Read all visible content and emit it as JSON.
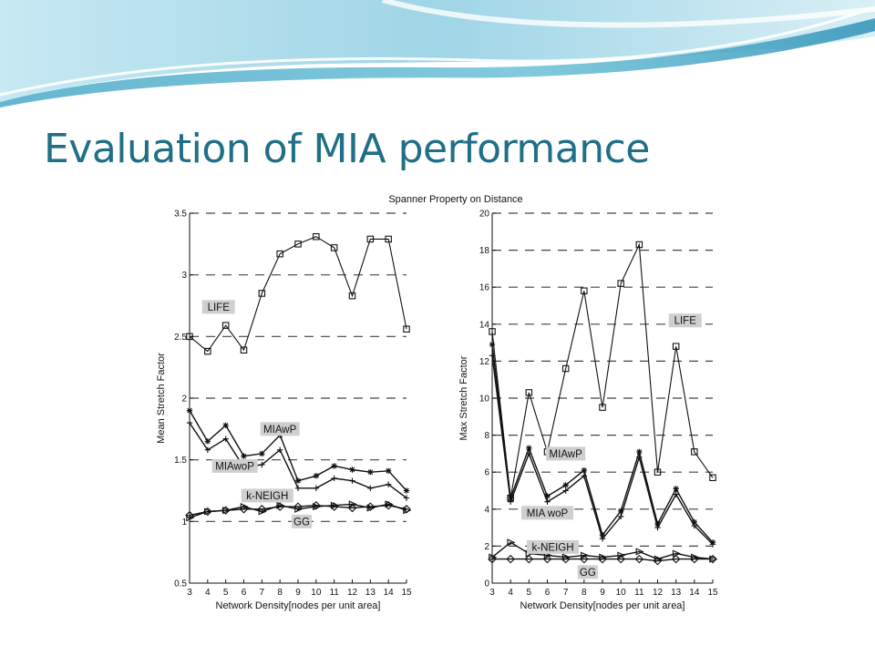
{
  "slide": {
    "title": "Evaluation of MIA performance",
    "title_color": "#1f6f86",
    "banner_colors": [
      "#a9dcea",
      "#5fb8d3",
      "#e6f4f9"
    ]
  },
  "chart_data": [
    {
      "type": "line",
      "title": "Spanner Property on Distance",
      "xlabel": "Network Density[nodes per unit area]",
      "ylabel": "Mean Stretch Factor",
      "x": [
        3,
        4,
        5,
        6,
        7,
        8,
        9,
        10,
        11,
        12,
        13,
        14,
        15
      ],
      "xlim": [
        3,
        15
      ],
      "ylim": [
        0.5,
        3.5
      ],
      "yticks": [
        0.5,
        1,
        1.5,
        2,
        2.5,
        3,
        3.5
      ],
      "ytick_labels": [
        "0.5",
        "1",
        "1.5",
        "2",
        "2.5",
        "3",
        "3.5"
      ],
      "grid": "dashed-horizontal",
      "series": [
        {
          "name": "LIFE",
          "marker": "square",
          "values": [
            2.5,
            2.38,
            2.59,
            2.39,
            2.85,
            3.17,
            3.25,
            3.31,
            3.22,
            2.83,
            3.29,
            3.29,
            2.56
          ]
        },
        {
          "name": "MIAwP",
          "marker": "star",
          "values": [
            1.9,
            1.65,
            1.78,
            1.53,
            1.55,
            1.7,
            1.33,
            1.37,
            1.45,
            1.42,
            1.4,
            1.41,
            1.25
          ]
        },
        {
          "name": "MIAwoP",
          "marker": "plus",
          "values": [
            1.8,
            1.58,
            1.67,
            1.44,
            1.46,
            1.58,
            1.27,
            1.27,
            1.35,
            1.33,
            1.27,
            1.3,
            1.19
          ]
        },
        {
          "name": "k-NEIGH",
          "marker": "triangle",
          "values": [
            1.03,
            1.08,
            1.09,
            1.12,
            1.08,
            1.13,
            1.1,
            1.12,
            1.13,
            1.14,
            1.11,
            1.14,
            1.09
          ]
        },
        {
          "name": "GG",
          "marker": "diamond",
          "values": [
            1.05,
            1.08,
            1.09,
            1.1,
            1.1,
            1.12,
            1.12,
            1.13,
            1.12,
            1.11,
            1.12,
            1.13,
            1.1
          ]
        }
      ],
      "series_labels": [
        {
          "series": "LIFE",
          "text": "LIFE",
          "at_x": 4.6,
          "at_y": 2.74
        },
        {
          "series": "MIAwP",
          "text": "MIAwP",
          "at_x": 8.0,
          "at_y": 1.75
        },
        {
          "series": "MIAwoP",
          "text": "MIAwoP",
          "at_x": 5.5,
          "at_y": 1.45
        },
        {
          "series": "k-NEIGH",
          "text": "k-NEIGH",
          "at_x": 7.3,
          "at_y": 1.21
        },
        {
          "series": "GG",
          "text": "GG",
          "at_x": 9.2,
          "at_y": 1.0
        }
      ]
    },
    {
      "type": "line",
      "xlabel": "Network Density[nodes per unit area]",
      "ylabel": "Max Stretch Factor",
      "x": [
        3,
        4,
        5,
        6,
        7,
        8,
        9,
        10,
        11,
        12,
        13,
        14,
        15
      ],
      "xlim": [
        3,
        15
      ],
      "ylim": [
        0,
        20
      ],
      "yticks": [
        0,
        2,
        4,
        6,
        8,
        10,
        12,
        14,
        16,
        18,
        20
      ],
      "ytick_labels": [
        "0",
        "2",
        "4",
        "6",
        "8",
        "10",
        "12",
        "14",
        "16",
        "18",
        "20"
      ],
      "grid": "dashed-horizontal",
      "series": [
        {
          "name": "LIFE",
          "marker": "square",
          "values": [
            13.6,
            4.6,
            10.3,
            7.1,
            11.6,
            15.8,
            9.5,
            16.2,
            18.3,
            6.0,
            12.8,
            7.1,
            5.7
          ]
        },
        {
          "name": "MIAwP",
          "marker": "star",
          "values": [
            12.9,
            4.6,
            7.3,
            4.7,
            5.3,
            6.1,
            2.6,
            3.9,
            7.1,
            3.2,
            5.1,
            3.3,
            2.2
          ]
        },
        {
          "name": "MIAwoP",
          "marker": "plus",
          "values": [
            12.3,
            4.4,
            7.0,
            4.4,
            5.0,
            5.8,
            2.4,
            3.6,
            6.8,
            3.0,
            4.8,
            3.1,
            2.1
          ]
        },
        {
          "name": "k-NEIGH",
          "marker": "triangle",
          "values": [
            1.4,
            2.2,
            1.6,
            1.5,
            1.4,
            1.5,
            1.4,
            1.5,
            1.7,
            1.3,
            1.6,
            1.4,
            1.3
          ]
        },
        {
          "name": "GG",
          "marker": "diamond",
          "values": [
            1.3,
            1.3,
            1.3,
            1.3,
            1.3,
            1.3,
            1.3,
            1.3,
            1.3,
            1.2,
            1.3,
            1.3,
            1.3
          ]
        }
      ],
      "series_labels": [
        {
          "series": "LIFE",
          "text": "LIFE",
          "at_x": 13.5,
          "at_y": 14.2
        },
        {
          "series": "MIAwP",
          "text": "MIAwP",
          "at_x": 7.0,
          "at_y": 7.0
        },
        {
          "series": "MIAwoP",
          "text": "MIA woP",
          "at_x": 6.0,
          "at_y": 3.8
        },
        {
          "series": "k-NEIGH",
          "text": "k-NEIGH",
          "at_x": 6.3,
          "at_y": 1.95
        },
        {
          "series": "GG",
          "text": "GG",
          "at_x": 8.2,
          "at_y": 0.6
        }
      ]
    }
  ]
}
